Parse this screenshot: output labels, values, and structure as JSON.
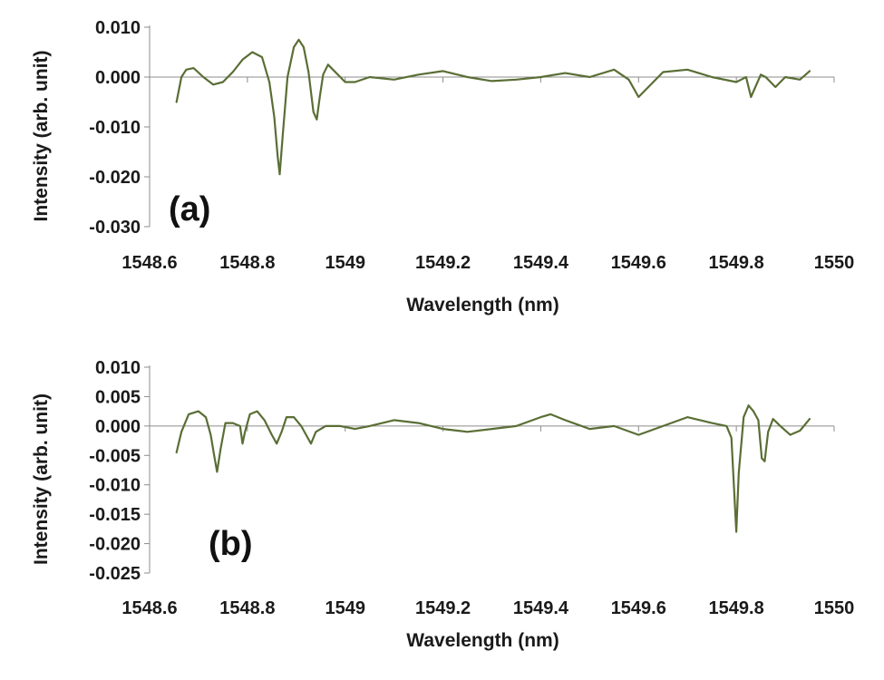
{
  "chart_data": [
    {
      "type": "line",
      "panel_label": "(a)",
      "xlabel": "Wavelength (nm)",
      "ylabel": "Intensity (arb. unit)",
      "xlim": [
        1548.6,
        1550
      ],
      "ylim": [
        -0.03,
        0.01
      ],
      "x_ticks": [
        "1548.6",
        "1548.8",
        "1549",
        "1549.2",
        "1549.4",
        "1549.6",
        "1549.8",
        "1550"
      ],
      "y_ticks": [
        "0.010",
        "0.000",
        "-0.010",
        "-0.020",
        "-0.030"
      ],
      "line_color": "#5a6e35",
      "series": [
        {
          "x": [
            1548.655,
            1548.665,
            1548.675,
            1548.69,
            1548.71,
            1548.73,
            1548.75,
            1548.77,
            1548.79,
            1548.81,
            1548.83,
            1548.845,
            1548.855,
            1548.862,
            1548.866,
            1548.872,
            1548.882,
            1548.895,
            1548.905,
            1548.915,
            1548.925,
            1548.935,
            1548.942,
            1548.948,
            1548.955,
            1548.965,
            1548.975,
            1548.99,
            1549.0,
            1549.02,
            1549.05,
            1549.1,
            1549.15,
            1549.2,
            1549.25,
            1549.3,
            1549.35,
            1549.4,
            1549.45,
            1549.5,
            1549.55,
            1549.58,
            1549.6,
            1549.62,
            1549.65,
            1549.7,
            1549.75,
            1549.8,
            1549.81,
            1549.82,
            1549.83,
            1549.85,
            1549.86,
            1549.88,
            1549.9,
            1549.93,
            1549.95
          ],
          "y": [
            -0.005,
            0.0,
            0.0015,
            0.0018,
            0.0,
            -0.0015,
            -0.001,
            0.001,
            0.0035,
            0.005,
            0.004,
            -0.001,
            -0.008,
            -0.016,
            -0.0195,
            -0.012,
            0.0,
            0.006,
            0.0075,
            0.006,
            0.001,
            -0.007,
            -0.0085,
            -0.004,
            0.0005,
            0.0025,
            0.0015,
            0.0,
            -0.001,
            -0.001,
            0.0,
            -0.0005,
            0.0005,
            0.0012,
            0.0,
            -0.0008,
            -0.0005,
            0.0,
            0.0008,
            0.0,
            0.0015,
            -0.0005,
            -0.004,
            -0.002,
            0.001,
            0.0015,
            0.0,
            -0.001,
            -0.0005,
            0.0,
            -0.004,
            0.0005,
            0.0,
            -0.002,
            0.0,
            -0.0005,
            0.0012
          ]
        }
      ]
    },
    {
      "type": "line",
      "panel_label": "(b)",
      "xlabel": "Wavelength (nm)",
      "ylabel": "Intensity (arb. unit)",
      "xlim": [
        1548.6,
        1550
      ],
      "ylim": [
        -0.025,
        0.01
      ],
      "x_ticks": [
        "1548.6",
        "1548.8",
        "1549",
        "1549.2",
        "1549.4",
        "1549.6",
        "1549.8",
        "1550"
      ],
      "y_ticks": [
        "0.010",
        "0.005",
        "0.000",
        "-0.005",
        "-0.010",
        "-0.015",
        "-0.020",
        "-0.025"
      ],
      "line_color": "#5a6e35",
      "series": [
        {
          "x": [
            1548.655,
            1548.665,
            1548.68,
            1548.7,
            1548.715,
            1548.725,
            1548.732,
            1548.738,
            1548.745,
            1548.755,
            1548.77,
            1548.785,
            1548.79,
            1548.795,
            1548.805,
            1548.82,
            1548.835,
            1548.85,
            1548.86,
            1548.87,
            1548.88,
            1548.895,
            1548.91,
            1548.92,
            1548.93,
            1548.94,
            1548.96,
            1548.99,
            1549.02,
            1549.05,
            1549.1,
            1549.15,
            1549.2,
            1549.25,
            1549.3,
            1549.35,
            1549.4,
            1549.42,
            1549.45,
            1549.5,
            1549.55,
            1549.6,
            1549.65,
            1549.7,
            1549.75,
            1549.78,
            1549.79,
            1549.795,
            1549.8,
            1549.805,
            1549.815,
            1549.825,
            1549.835,
            1549.845,
            1549.852,
            1549.858,
            1549.865,
            1549.875,
            1549.89,
            1549.91,
            1549.93,
            1549.95
          ],
          "y": [
            -0.0045,
            -0.001,
            0.002,
            0.0025,
            0.0015,
            -0.0015,
            -0.005,
            -0.0078,
            -0.004,
            0.0005,
            0.0005,
            0.0,
            -0.003,
            -0.001,
            0.002,
            0.0025,
            0.001,
            -0.0015,
            -0.003,
            -0.001,
            0.0015,
            0.0015,
            0.0,
            -0.0015,
            -0.003,
            -0.001,
            0.0,
            0.0,
            -0.0005,
            0.0,
            0.001,
            0.0005,
            -0.0005,
            -0.001,
            -0.0005,
            0.0,
            0.0015,
            0.002,
            0.001,
            -0.0005,
            0.0,
            -0.0015,
            0.0,
            0.0015,
            0.0005,
            0.0,
            -0.002,
            -0.01,
            -0.018,
            -0.008,
            0.0015,
            0.0035,
            0.0025,
            0.001,
            -0.0055,
            -0.006,
            -0.001,
            0.0012,
            0.0,
            -0.0015,
            -0.0008,
            0.0012
          ]
        }
      ]
    }
  ]
}
